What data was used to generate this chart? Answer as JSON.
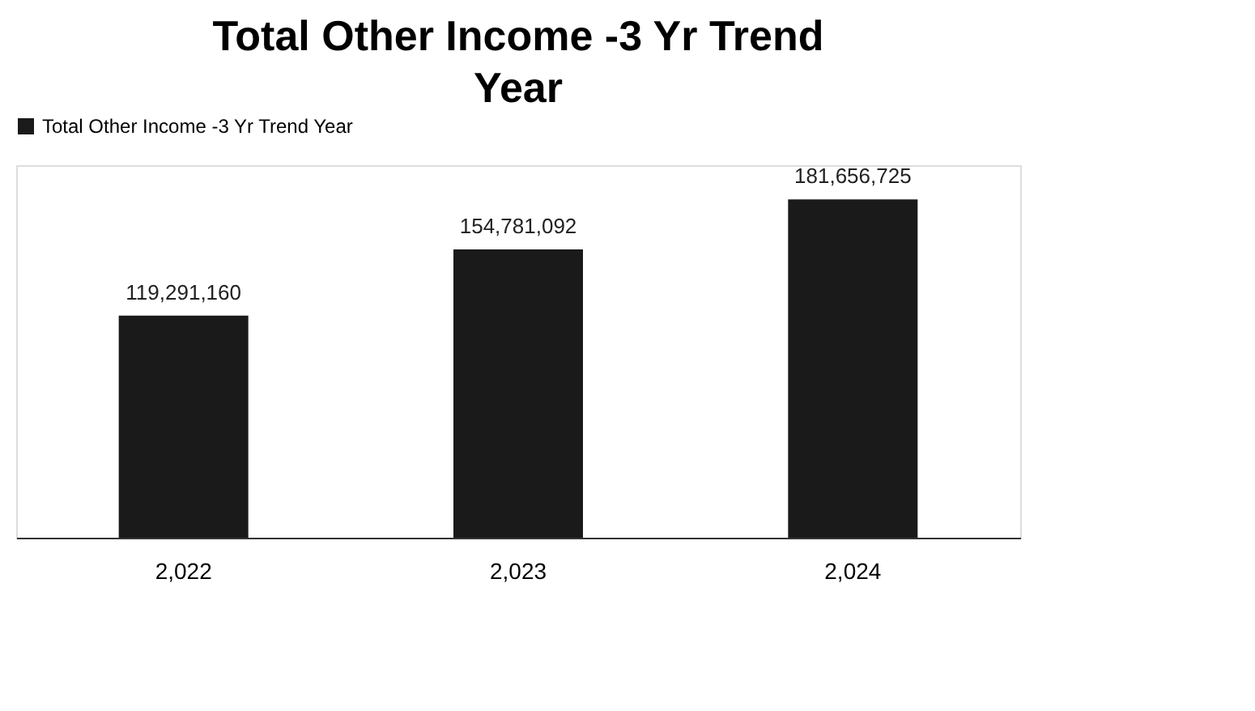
{
  "chart_data": {
    "type": "bar",
    "title": "Total Other Income -3 Yr Trend Year",
    "categories": [
      "2,022",
      "2,023",
      "2,024"
    ],
    "series": [
      {
        "name": "Total Other Income -3 Yr Trend Year",
        "color": "#1a1a1a",
        "values": [
          119291160,
          154781092,
          181656725
        ],
        "value_labels": [
          "119,291,160",
          "154,781,092",
          "181,656,725"
        ]
      }
    ],
    "legend": "top"
  }
}
